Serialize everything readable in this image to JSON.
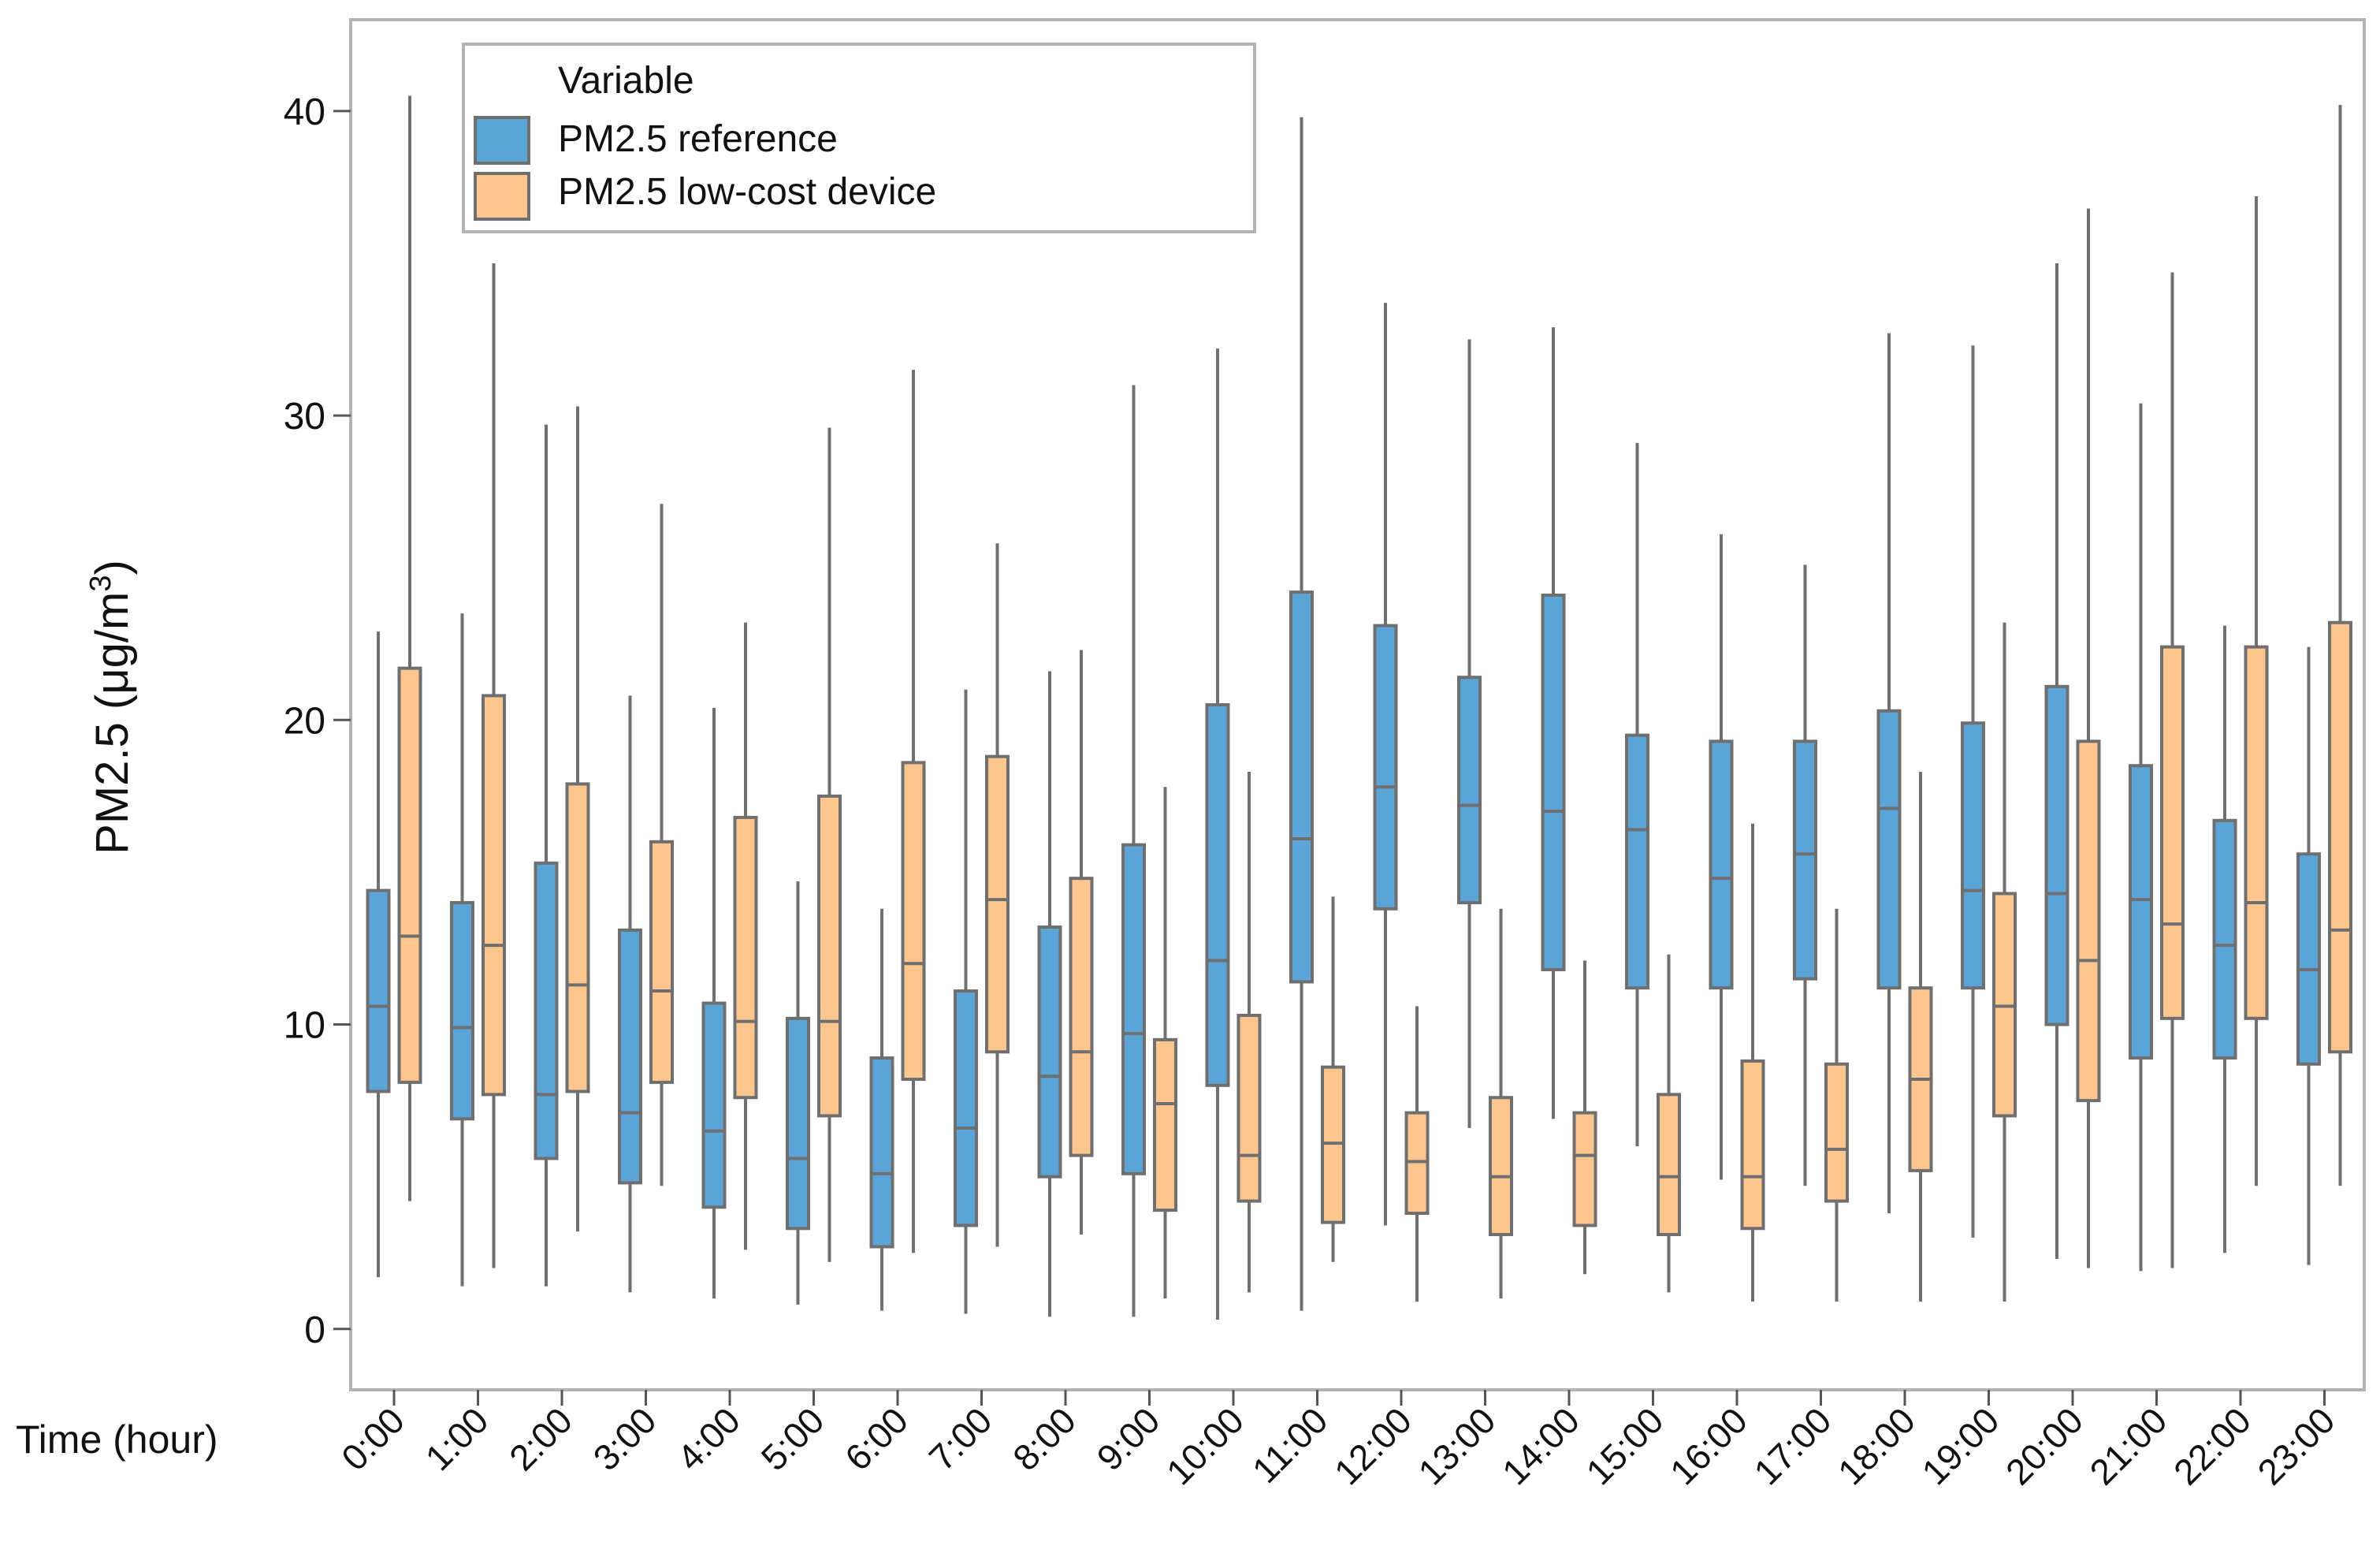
{
  "chart_data": {
    "type": "boxplot",
    "title": "",
    "ylabel": "PM2.5 (μg/m³)",
    "ylabel_parts": {
      "main": "PM2.5 (μg/m",
      "sup": "3",
      "close": ")"
    },
    "xlabel": "Time (hour)",
    "ylim": [
      -2,
      43
    ],
    "yticks": [
      0,
      10,
      20,
      30,
      40
    ],
    "categories": [
      "0:00",
      "1:00",
      "2:00",
      "3:00",
      "4:00",
      "5:00",
      "6:00",
      "7:00",
      "8:00",
      "9:00",
      "10:00",
      "11:00",
      "12:00",
      "13:00",
      "14:00",
      "15:00",
      "16:00",
      "17:00",
      "18:00",
      "19:00",
      "20:00",
      "21:00",
      "22:00",
      "23:00"
    ],
    "legend": {
      "title": "Variable",
      "position": "top-left"
    },
    "series": [
      {
        "name": "PM2.5 reference",
        "color": "#5ba4d8",
        "stats": [
          {
            "min": 1.7,
            "q1": 7.8,
            "median": 10.6,
            "q3": 14.4,
            "max": 22.9
          },
          {
            "min": 1.4,
            "q1": 6.9,
            "median": 9.9,
            "q3": 14.0,
            "max": 23.5
          },
          {
            "min": 1.4,
            "q1": 5.6,
            "median": 7.7,
            "q3": 15.3,
            "max": 29.7
          },
          {
            "min": 1.2,
            "q1": 4.8,
            "median": 7.1,
            "q3": 13.1,
            "max": 20.8
          },
          {
            "min": 1.0,
            "q1": 4.0,
            "median": 6.5,
            "q3": 10.7,
            "max": 20.4
          },
          {
            "min": 0.8,
            "q1": 3.3,
            "median": 5.6,
            "q3": 10.2,
            "max": 14.7
          },
          {
            "min": 0.6,
            "q1": 2.7,
            "median": 5.1,
            "q3": 8.9,
            "max": 13.8
          },
          {
            "min": 0.5,
            "q1": 3.4,
            "median": 6.6,
            "q3": 11.1,
            "max": 21.0
          },
          {
            "min": 0.4,
            "q1": 5.0,
            "median": 8.3,
            "q3": 13.2,
            "max": 21.6
          },
          {
            "min": 0.4,
            "q1": 5.1,
            "median": 9.7,
            "q3": 15.9,
            "max": 31.0
          },
          {
            "min": 0.3,
            "q1": 8.0,
            "median": 12.1,
            "q3": 20.5,
            "max": 32.2
          },
          {
            "min": 0.6,
            "q1": 11.4,
            "median": 16.1,
            "q3": 24.2,
            "max": 39.8
          },
          {
            "min": 3.4,
            "q1": 13.8,
            "median": 17.8,
            "q3": 23.1,
            "max": 33.7
          },
          {
            "min": 6.6,
            "q1": 14.0,
            "median": 17.2,
            "q3": 21.4,
            "max": 32.5
          },
          {
            "min": 6.9,
            "q1": 11.8,
            "median": 17.0,
            "q3": 24.1,
            "max": 32.9
          },
          {
            "min": 6.0,
            "q1": 11.2,
            "median": 16.4,
            "q3": 19.5,
            "max": 29.1
          },
          {
            "min": 4.9,
            "q1": 11.2,
            "median": 14.8,
            "q3": 19.3,
            "max": 26.1
          },
          {
            "min": 4.7,
            "q1": 11.5,
            "median": 15.6,
            "q3": 19.3,
            "max": 25.1
          },
          {
            "min": 3.8,
            "q1": 11.2,
            "median": 17.1,
            "q3": 20.3,
            "max": 32.7
          },
          {
            "min": 3.0,
            "q1": 11.2,
            "median": 14.4,
            "q3": 19.9,
            "max": 32.3
          },
          {
            "min": 2.3,
            "q1": 10.0,
            "median": 14.3,
            "q3": 21.1,
            "max": 35.0
          },
          {
            "min": 1.9,
            "q1": 8.9,
            "median": 14.1,
            "q3": 18.5,
            "max": 30.4
          },
          {
            "min": 2.5,
            "q1": 8.9,
            "median": 12.6,
            "q3": 16.7,
            "max": 23.1
          },
          {
            "min": 2.1,
            "q1": 8.7,
            "median": 11.8,
            "q3": 15.6,
            "max": 22.4
          }
        ]
      },
      {
        "name": "PM2.5 low-cost device",
        "color": "#fdc68f",
        "stats": [
          {
            "min": 4.2,
            "q1": 8.1,
            "median": 12.9,
            "q3": 21.7,
            "max": 40.5
          },
          {
            "min": 2.0,
            "q1": 7.7,
            "median": 12.6,
            "q3": 20.8,
            "max": 35.0
          },
          {
            "min": 3.2,
            "q1": 7.8,
            "median": 11.3,
            "q3": 17.9,
            "max": 30.3
          },
          {
            "min": 4.7,
            "q1": 8.1,
            "median": 11.1,
            "q3": 16.0,
            "max": 27.1
          },
          {
            "min": 2.6,
            "q1": 7.6,
            "median": 10.1,
            "q3": 16.8,
            "max": 23.2
          },
          {
            "min": 2.2,
            "q1": 7.0,
            "median": 10.1,
            "q3": 17.5,
            "max": 29.6
          },
          {
            "min": 2.5,
            "q1": 8.2,
            "median": 12.0,
            "q3": 18.6,
            "max": 31.5
          },
          {
            "min": 2.7,
            "q1": 9.1,
            "median": 14.1,
            "q3": 18.8,
            "max": 25.8
          },
          {
            "min": 3.1,
            "q1": 5.7,
            "median": 9.1,
            "q3": 14.8,
            "max": 22.3
          },
          {
            "min": 1.0,
            "q1": 3.9,
            "median": 7.4,
            "q3": 9.5,
            "max": 17.8
          },
          {
            "min": 1.2,
            "q1": 4.2,
            "median": 5.7,
            "q3": 10.3,
            "max": 18.3
          },
          {
            "min": 2.2,
            "q1": 3.5,
            "median": 6.1,
            "q3": 8.6,
            "max": 14.2
          },
          {
            "min": 0.9,
            "q1": 3.8,
            "median": 5.5,
            "q3": 7.1,
            "max": 10.6
          },
          {
            "min": 1.0,
            "q1": 3.1,
            "median": 5.0,
            "q3": 7.6,
            "max": 13.8
          },
          {
            "min": 1.8,
            "q1": 3.4,
            "median": 5.7,
            "q3": 7.1,
            "max": 12.1
          },
          {
            "min": 1.2,
            "q1": 3.1,
            "median": 5.0,
            "q3": 7.7,
            "max": 12.3
          },
          {
            "min": 0.9,
            "q1": 3.3,
            "median": 5.0,
            "q3": 8.8,
            "max": 16.6
          },
          {
            "min": 0.9,
            "q1": 4.2,
            "median": 5.9,
            "q3": 8.7,
            "max": 13.8
          },
          {
            "min": 0.9,
            "q1": 5.2,
            "median": 8.2,
            "q3": 11.2,
            "max": 18.3
          },
          {
            "min": 0.9,
            "q1": 7.0,
            "median": 10.6,
            "q3": 14.3,
            "max": 23.2
          },
          {
            "min": 2.0,
            "q1": 7.5,
            "median": 12.1,
            "q3": 19.3,
            "max": 36.8
          },
          {
            "min": 2.0,
            "q1": 10.2,
            "median": 13.3,
            "q3": 22.4,
            "max": 34.7
          },
          {
            "min": 4.7,
            "q1": 10.2,
            "median": 14.0,
            "q3": 22.4,
            "max": 37.2
          },
          {
            "min": 4.7,
            "q1": 9.1,
            "median": 13.1,
            "q3": 23.2,
            "max": 40.2
          }
        ]
      }
    ]
  }
}
